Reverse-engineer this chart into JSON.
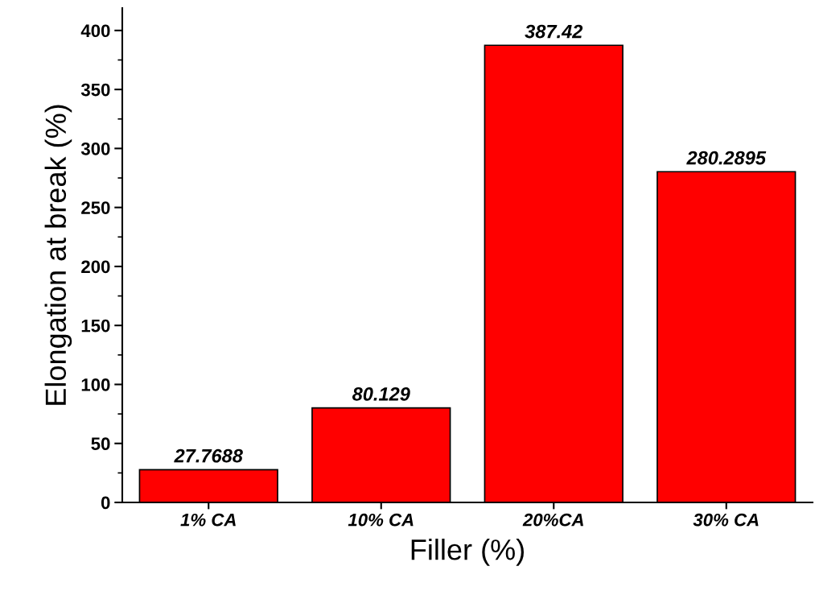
{
  "chart_data": {
    "type": "bar",
    "xlabel": "Filler (%)",
    "ylabel": "Elongation at break (%)",
    "categories": [
      "1% CA",
      "10% CA",
      "20%CA",
      "30% CA"
    ],
    "values": [
      27.7688,
      80.129,
      387.42,
      280.2895
    ],
    "color": "#ff0000",
    "ylim": [
      0,
      419
    ],
    "yticks": [
      0,
      50,
      100,
      150,
      200,
      250,
      300,
      350,
      400
    ],
    "data_labels": true,
    "grid": false
  }
}
